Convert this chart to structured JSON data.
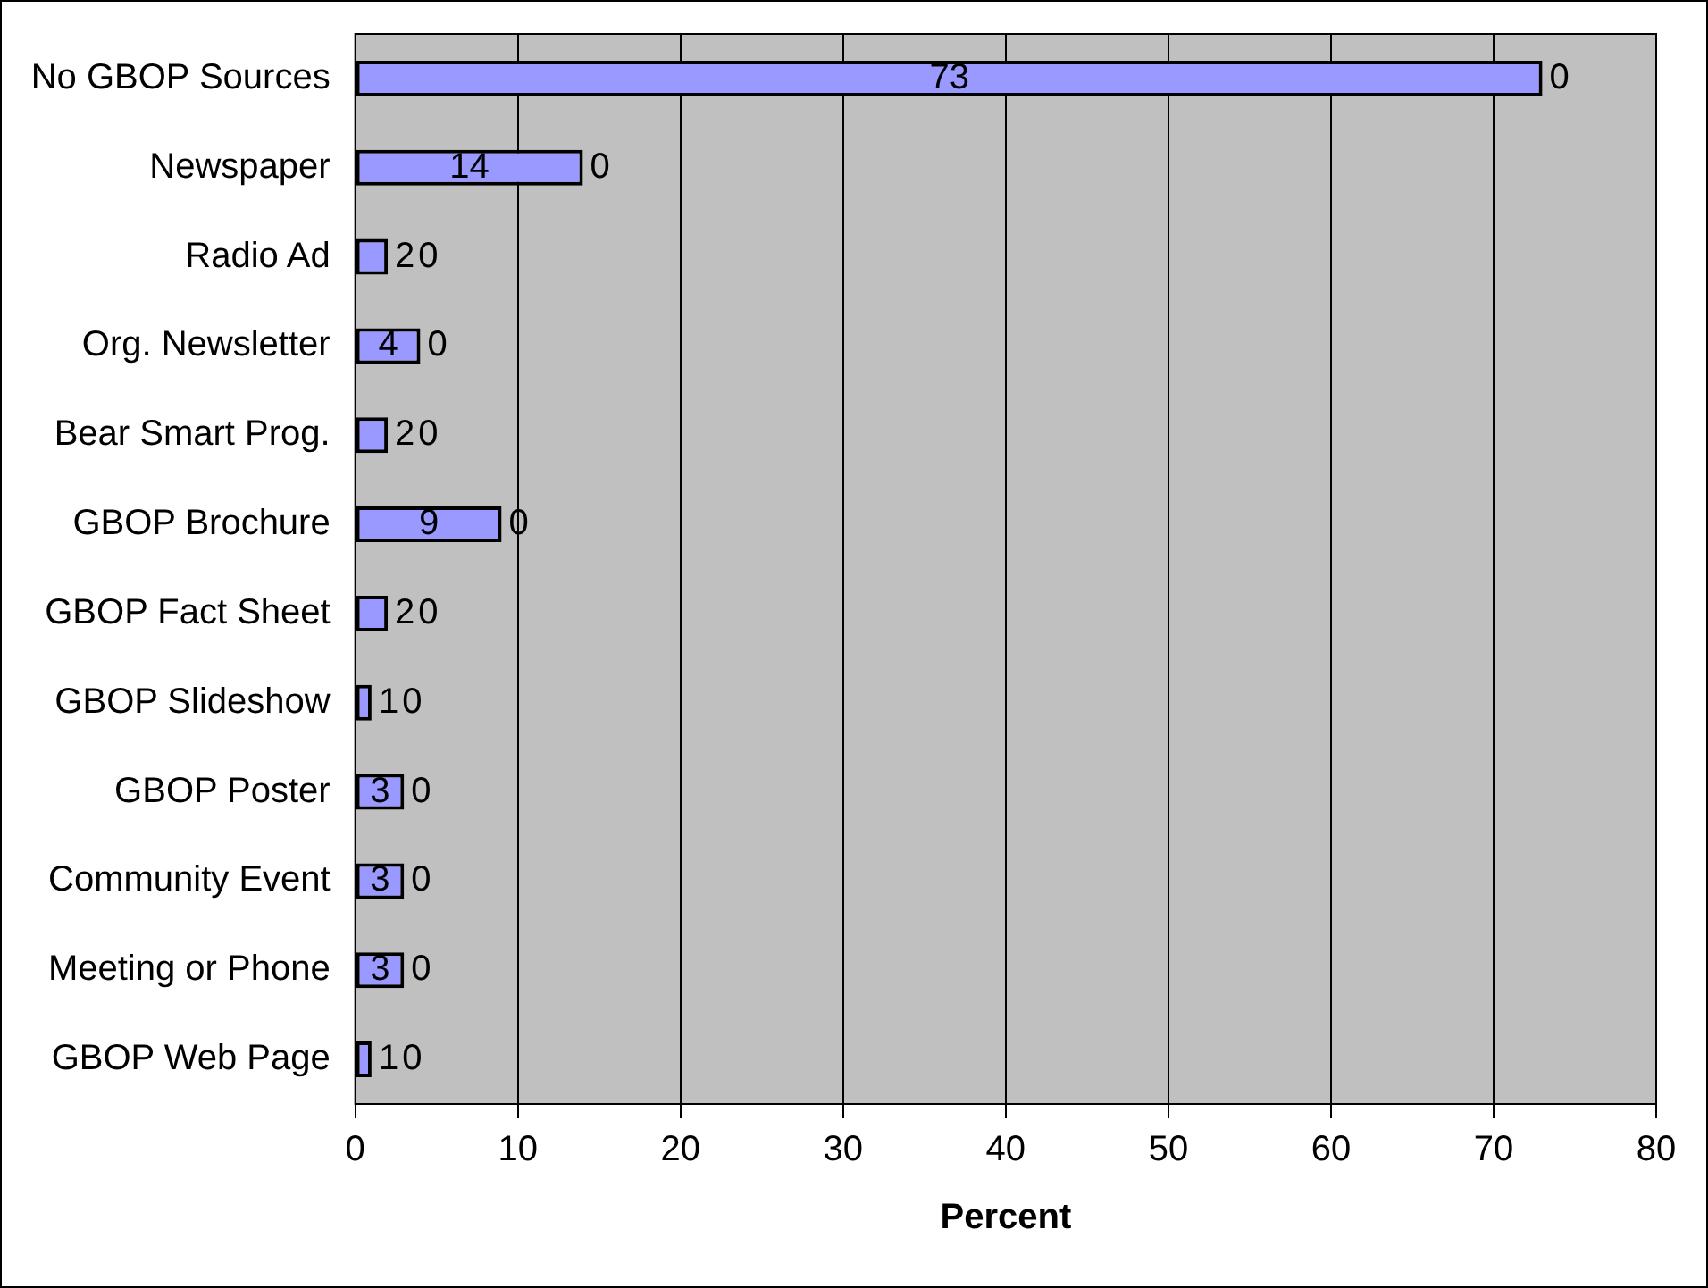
{
  "chart_data": {
    "type": "bar",
    "orientation": "horizontal",
    "stacked": true,
    "xlabel": "Percent",
    "categories": [
      "No GBOP Sources",
      "Newspaper",
      "Radio Ad",
      "Org. Newsletter",
      "Bear Smart Prog.",
      "GBOP Brochure",
      "GBOP Fact Sheet",
      "GBOP Slideshow",
      "GBOP Poster",
      "Community Event",
      "Meeting or Phone",
      "GBOP Web Page"
    ],
    "series": [
      {
        "color": "#9999ff",
        "values": [
          73,
          14,
          2,
          4,
          2,
          9,
          2,
          1,
          3,
          3,
          3,
          1
        ]
      },
      {
        "color": "#000000",
        "values": [
          0,
          0,
          0,
          0,
          0,
          0,
          0,
          0,
          0,
          0,
          0,
          0
        ]
      }
    ],
    "xlim": [
      0,
      80
    ],
    "xticks": [
      0,
      10,
      20,
      30,
      40,
      50,
      60,
      70,
      80
    ],
    "grid": "x",
    "legend": false,
    "data_labels": true
  }
}
